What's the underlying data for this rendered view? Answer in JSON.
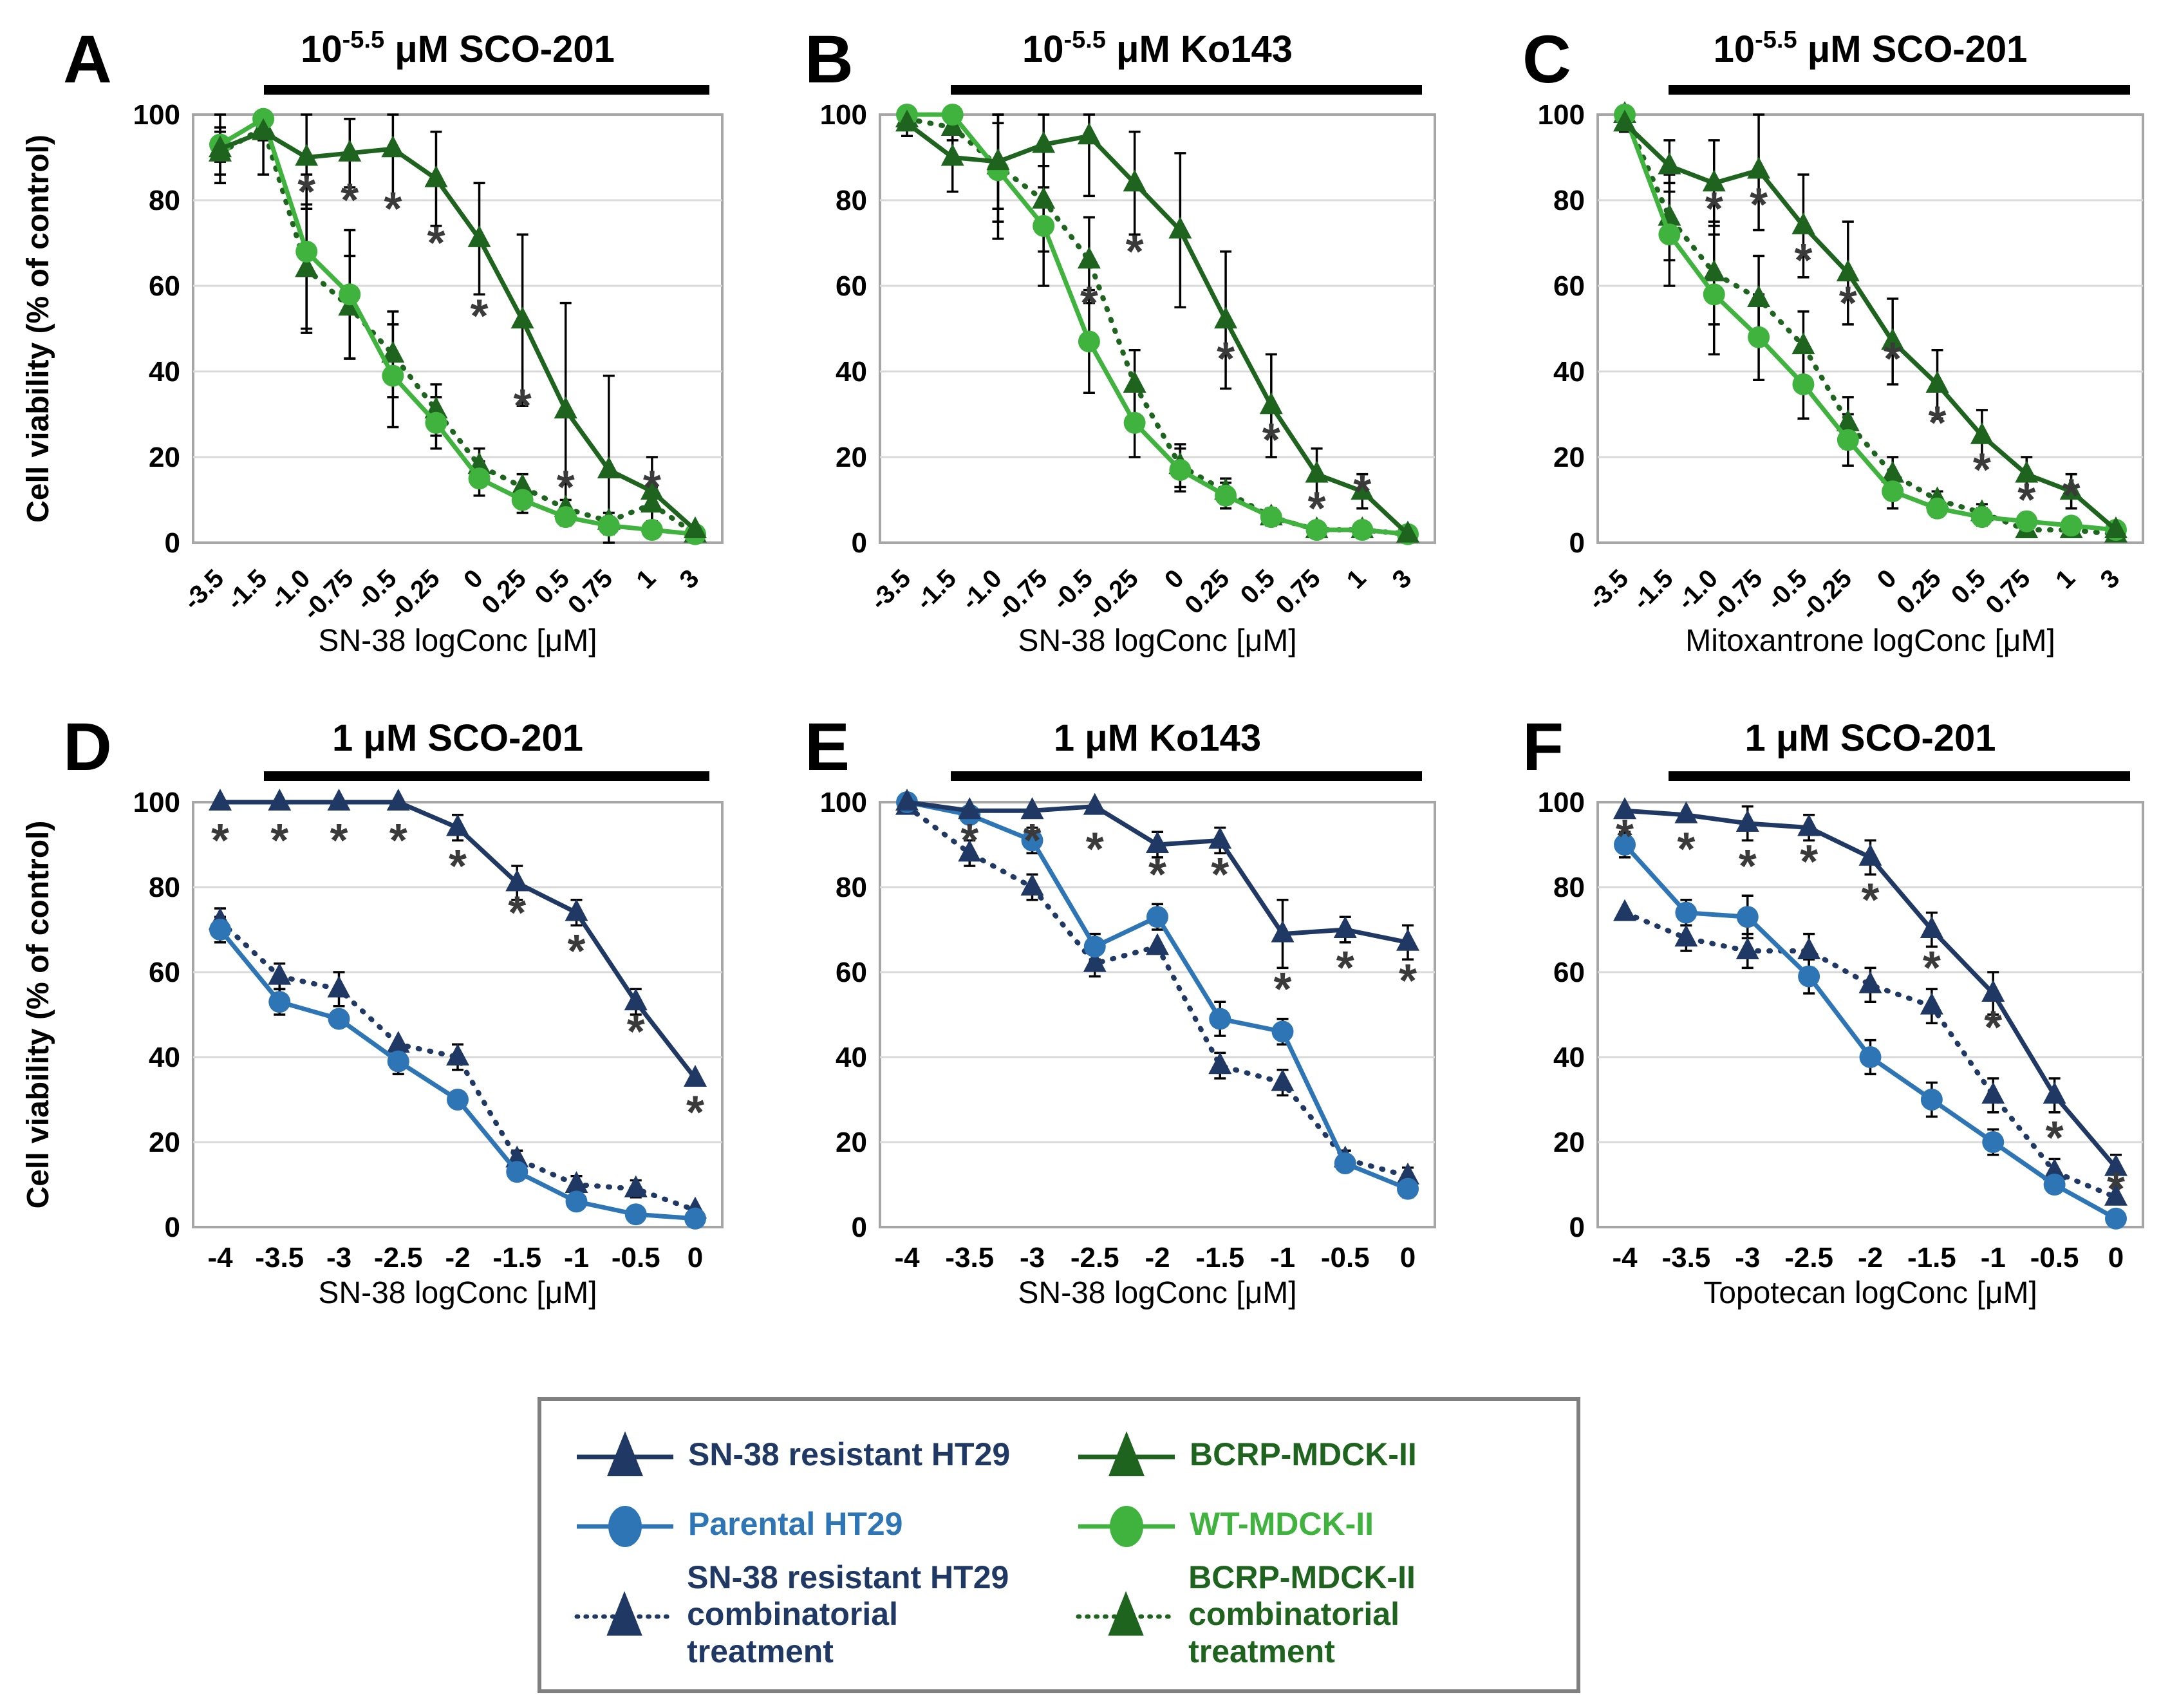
{
  "colors": {
    "navy": "#1F3864",
    "blue": "#2E75B6",
    "dark_green": "#1E641E",
    "light_green": "#3FB33D",
    "grid": "#D9D9D9",
    "frame": "#A6A6A6",
    "error_bar": "#000000",
    "asterisk": "#3A3A3A",
    "title_bar": "#000000"
  },
  "y_axis": {
    "title": "Cell viability (% of control)",
    "ticks": [
      100,
      80,
      60,
      40,
      20,
      0
    ],
    "range": [
      0,
      100
    ]
  },
  "legend": {
    "items": [
      {
        "label": "SN-38 resistant HT29",
        "label2": "",
        "color_key": "navy",
        "marker": "triangle",
        "dash": false
      },
      {
        "label": "Parental HT29",
        "label2": "",
        "color_key": "blue",
        "marker": "circle",
        "dash": false
      },
      {
        "label": "SN-38 resistant HT29",
        "label2": "combinatorial treatment",
        "color_key": "navy",
        "marker": "triangle",
        "dash": true
      },
      {
        "label": "BCRP-MDCK-II",
        "label2": "",
        "color_key": "dark_green",
        "marker": "triangle",
        "dash": false
      },
      {
        "label": "WT-MDCK-II",
        "label2": "",
        "color_key": "light_green",
        "marker": "circle",
        "dash": false
      },
      {
        "label": "BCRP-MDCK-II",
        "label2": "combinatorial treatment",
        "color_key": "dark_green",
        "marker": "triangle",
        "dash": true
      }
    ]
  },
  "chart_data": [
    {
      "id": "A",
      "letter": "A",
      "type": "line",
      "title": {
        "prefix": "10",
        "sup": "-5.5",
        "suffix": " μM SCO-201"
      },
      "xlabel": "SN-38 logConc [μM]",
      "x_ticks": [
        "-3.5",
        "-1.5",
        "-1.0",
        "-0.75",
        "-0.5",
        "-0.25",
        "0",
        "0.25",
        "0.5",
        "0.75",
        "1",
        "3"
      ],
      "rotate_ticks": true,
      "show_y_title": true,
      "ylim": [
        0,
        100
      ],
      "grid": true,
      "series": [
        {
          "name": "BCRP-MDCK-II",
          "color_key": "dark_green",
          "marker": "triangle",
          "dash": false,
          "values": [
            92,
            96,
            90,
            91,
            92,
            85,
            71,
            52,
            31,
            17,
            12,
            3
          ],
          "err": [
            8,
            10,
            12,
            8,
            12,
            11,
            13,
            20,
            25,
            22,
            8,
            0
          ]
        },
        {
          "name": "WT-MDCK-II",
          "color_key": "light_green",
          "marker": "circle",
          "dash": false,
          "values": [
            93,
            99,
            68,
            58,
            39,
            28,
            15,
            10,
            6,
            4,
            3,
            2
          ],
          "err": [
            4,
            2,
            18,
            15,
            12,
            6,
            4,
            3,
            2,
            2,
            0,
            0
          ]
        },
        {
          "name": "BCRP-MDCK-II combinatorial treatment",
          "color_key": "dark_green",
          "marker": "triangle",
          "dash": true,
          "values": [
            91,
            97,
            64,
            55,
            44,
            31,
            18,
            13,
            8,
            5,
            9,
            2
          ],
          "err": [
            5,
            3,
            15,
            12,
            10,
            6,
            4,
            3,
            2,
            2,
            4,
            0
          ]
        }
      ],
      "asterisks": [
        [
          2,
          84
        ],
        [
          3,
          82
        ],
        [
          4,
          80
        ],
        [
          5,
          72
        ],
        [
          6,
          55
        ],
        [
          7,
          34
        ],
        [
          8,
          15
        ],
        [
          10,
          15
        ]
      ]
    },
    {
      "id": "B",
      "letter": "B",
      "type": "line",
      "title": {
        "prefix": "10",
        "sup": "-5.5",
        "suffix": " μM Ko143"
      },
      "xlabel": "SN-38 logConc [μM]",
      "x_ticks": [
        "-3.5",
        "-1.5",
        "-1.0",
        "-0.75",
        "-0.5",
        "-0.25",
        "0",
        "0.25",
        "0.5",
        "0.75",
        "1",
        "3"
      ],
      "rotate_ticks": true,
      "show_y_title": false,
      "ylim": [
        0,
        100
      ],
      "grid": true,
      "series": [
        {
          "name": "BCRP-MDCK-II",
          "color_key": "dark_green",
          "marker": "triangle",
          "dash": false,
          "values": [
            98,
            90,
            89,
            93,
            95,
            84,
            73,
            52,
            32,
            16,
            12,
            2
          ],
          "err": [
            3,
            8,
            14,
            10,
            14,
            12,
            18,
            16,
            12,
            6,
            4,
            0
          ]
        },
        {
          "name": "WT-MDCK-II",
          "color_key": "light_green",
          "marker": "circle",
          "dash": false,
          "values": [
            100,
            100,
            87,
            74,
            47,
            28,
            17,
            11,
            6,
            3,
            3,
            2
          ],
          "err": [
            2,
            3,
            16,
            14,
            12,
            8,
            5,
            3,
            2,
            0,
            0,
            0
          ]
        },
        {
          "name": "BCRP-MDCK-II combinatorial treatment",
          "color_key": "dark_green",
          "marker": "triangle",
          "dash": true,
          "values": [
            99,
            97,
            88,
            80,
            66,
            37,
            18,
            12,
            6,
            3,
            3,
            2
          ],
          "err": [
            2,
            3,
            10,
            12,
            10,
            8,
            5,
            3,
            2,
            0,
            0,
            0
          ]
        }
      ],
      "asterisks": [
        [
          4,
          58
        ],
        [
          5,
          70
        ],
        [
          7,
          45
        ],
        [
          8,
          26
        ],
        [
          9,
          10
        ],
        [
          10,
          14
        ]
      ]
    },
    {
      "id": "C",
      "letter": "C",
      "type": "line",
      "title": {
        "prefix": "10",
        "sup": "-5.5",
        "suffix": " μM SCO-201"
      },
      "xlabel": "Mitoxantrone logConc [μM]",
      "x_ticks": [
        "-3.5",
        "-1.5",
        "-1.0",
        "-0.75",
        "-0.5",
        "-0.25",
        "0",
        "0.25",
        "0.5",
        "0.75",
        "1",
        "3"
      ],
      "rotate_ticks": true,
      "show_y_title": false,
      "ylim": [
        0,
        100
      ],
      "grid": true,
      "series": [
        {
          "name": "BCRP-MDCK-II",
          "color_key": "dark_green",
          "marker": "triangle",
          "dash": false,
          "values": [
            98,
            88,
            84,
            87,
            74,
            63,
            47,
            37,
            25,
            16,
            12,
            3
          ],
          "err": [
            2,
            6,
            10,
            14,
            12,
            12,
            10,
            8,
            6,
            4,
            4,
            0
          ]
        },
        {
          "name": "WT-MDCK-II",
          "color_key": "light_green",
          "marker": "circle",
          "dash": false,
          "values": [
            100,
            72,
            58,
            48,
            37,
            24,
            12,
            8,
            6,
            5,
            4,
            3
          ],
          "err": [
            2,
            12,
            14,
            10,
            8,
            6,
            4,
            2,
            2,
            2,
            0,
            0
          ]
        },
        {
          "name": "BCRP-MDCK-II combinatorial treatment",
          "color_key": "dark_green",
          "marker": "triangle",
          "dash": true,
          "values": [
            100,
            76,
            63,
            57,
            46,
            28,
            16,
            10,
            7,
            3,
            3,
            2
          ],
          "err": [
            2,
            10,
            12,
            10,
            8,
            6,
            4,
            2,
            2,
            0,
            0,
            0
          ]
        }
      ],
      "asterisks": [
        [
          2,
          80
        ],
        [
          3,
          81
        ],
        [
          4,
          68
        ],
        [
          5,
          58
        ],
        [
          6,
          45
        ],
        [
          7,
          30
        ],
        [
          8,
          19
        ],
        [
          9,
          12
        ],
        [
          10,
          13
        ]
      ]
    },
    {
      "id": "D",
      "letter": "D",
      "type": "line",
      "title": {
        "prefix": "",
        "sup": "",
        "suffix": "1 μM SCO-201"
      },
      "xlabel": "SN-38 logConc [μM]",
      "x_ticks": [
        "-4",
        "-3.5",
        "-3",
        "-2.5",
        "-2",
        "-1.5",
        "-1",
        "-0.5",
        "0"
      ],
      "rotate_ticks": false,
      "show_y_title": true,
      "ylim": [
        0,
        100
      ],
      "grid": true,
      "series": [
        {
          "name": "SN-38 resistant HT29",
          "color_key": "navy",
          "marker": "triangle",
          "dash": false,
          "values": [
            100,
            100,
            100,
            100,
            94,
            81,
            74,
            53,
            35
          ],
          "err": [
            0,
            0,
            0,
            0,
            3,
            4,
            3,
            3,
            0
          ]
        },
        {
          "name": "Parental HT29",
          "color_key": "blue",
          "marker": "circle",
          "dash": false,
          "values": [
            70,
            53,
            49,
            39,
            30,
            13,
            6,
            3,
            2
          ],
          "err": [
            3,
            3,
            0,
            3,
            0,
            2,
            0,
            0,
            0
          ]
        },
        {
          "name": "SN-38 resistant HT29 combinatorial treatment",
          "color_key": "navy",
          "marker": "triangle",
          "dash": true,
          "values": [
            72,
            59,
            56,
            43,
            40,
            16,
            10,
            9,
            4
          ],
          "err": [
            3,
            3,
            4,
            0,
            3,
            2,
            2,
            2,
            0
          ]
        }
      ],
      "asterisks": [
        [
          0,
          93
        ],
        [
          1,
          93
        ],
        [
          2,
          93
        ],
        [
          3,
          93
        ],
        [
          4,
          87
        ],
        [
          5,
          76
        ],
        [
          6,
          67
        ],
        [
          7,
          48
        ],
        [
          8,
          29
        ]
      ]
    },
    {
      "id": "E",
      "letter": "E",
      "type": "line",
      "title": {
        "prefix": "",
        "sup": "",
        "suffix": "1 μM Ko143"
      },
      "xlabel": "SN-38 logConc [μM]",
      "x_ticks": [
        "-4",
        "-3.5",
        "-3",
        "-2.5",
        "-2",
        "-1.5",
        "-1",
        "-0.5",
        "0"
      ],
      "rotate_ticks": false,
      "show_y_title": false,
      "ylim": [
        0,
        100
      ],
      "grid": true,
      "series": [
        {
          "name": "SN-38 resistant HT29",
          "color_key": "navy",
          "marker": "triangle",
          "dash": false,
          "values": [
            100,
            98,
            98,
            99,
            90,
            91,
            69,
            70,
            67
          ],
          "err": [
            0,
            0,
            0,
            0,
            3,
            3,
            8,
            3,
            4
          ]
        },
        {
          "name": "Parental HT29",
          "color_key": "blue",
          "marker": "circle",
          "dash": false,
          "values": [
            100,
            97,
            91,
            66,
            73,
            49,
            46,
            15,
            9
          ],
          "err": [
            0,
            0,
            3,
            3,
            3,
            4,
            3,
            0,
            2
          ]
        },
        {
          "name": "SN-38 resistant HT29 combinatorial treatment",
          "color_key": "navy",
          "marker": "triangle",
          "dash": true,
          "values": [
            99,
            88,
            80,
            62,
            66,
            38,
            34,
            16,
            12
          ],
          "err": [
            0,
            3,
            3,
            3,
            0,
            3,
            3,
            2,
            2
          ]
        }
      ],
      "asterisks": [
        [
          1,
          93
        ],
        [
          2,
          93
        ],
        [
          3,
          91
        ],
        [
          4,
          85
        ],
        [
          5,
          85
        ],
        [
          6,
          58
        ],
        [
          7,
          63
        ],
        [
          8,
          60
        ]
      ]
    },
    {
      "id": "F",
      "letter": "F",
      "type": "line",
      "title": {
        "prefix": "",
        "sup": "",
        "suffix": "1 μM SCO-201"
      },
      "xlabel": "Topotecan logConc [μM]",
      "x_ticks": [
        "-4",
        "-3.5",
        "-3",
        "-2.5",
        "-2",
        "-1.5",
        "-1",
        "-0.5",
        "0"
      ],
      "rotate_ticks": false,
      "show_y_title": false,
      "ylim": [
        0,
        100
      ],
      "grid": true,
      "series": [
        {
          "name": "SN-38 resistant HT29",
          "color_key": "navy",
          "marker": "triangle",
          "dash": false,
          "values": [
            98,
            97,
            95,
            94,
            87,
            70,
            55,
            31,
            14
          ],
          "err": [
            0,
            0,
            4,
            3,
            4,
            4,
            5,
            4,
            3
          ]
        },
        {
          "name": "Parental HT29",
          "color_key": "blue",
          "marker": "circle",
          "dash": false,
          "values": [
            90,
            74,
            73,
            59,
            40,
            30,
            20,
            10,
            2
          ],
          "err": [
            3,
            3,
            5,
            4,
            4,
            4,
            3,
            2,
            0
          ]
        },
        {
          "name": "SN-38 resistant HT29 combinatorial treatment",
          "color_key": "navy",
          "marker": "triangle",
          "dash": true,
          "values": [
            74,
            68,
            65,
            65,
            57,
            52,
            31,
            13,
            7
          ],
          "err": [
            0,
            3,
            4,
            4,
            4,
            4,
            4,
            3,
            0
          ]
        }
      ],
      "asterisks": [
        [
          0,
          94
        ],
        [
          1,
          91
        ],
        [
          2,
          87
        ],
        [
          3,
          88
        ],
        [
          4,
          79
        ],
        [
          5,
          63
        ],
        [
          6,
          49
        ],
        [
          7,
          23
        ],
        [
          8,
          11
        ]
      ]
    }
  ]
}
